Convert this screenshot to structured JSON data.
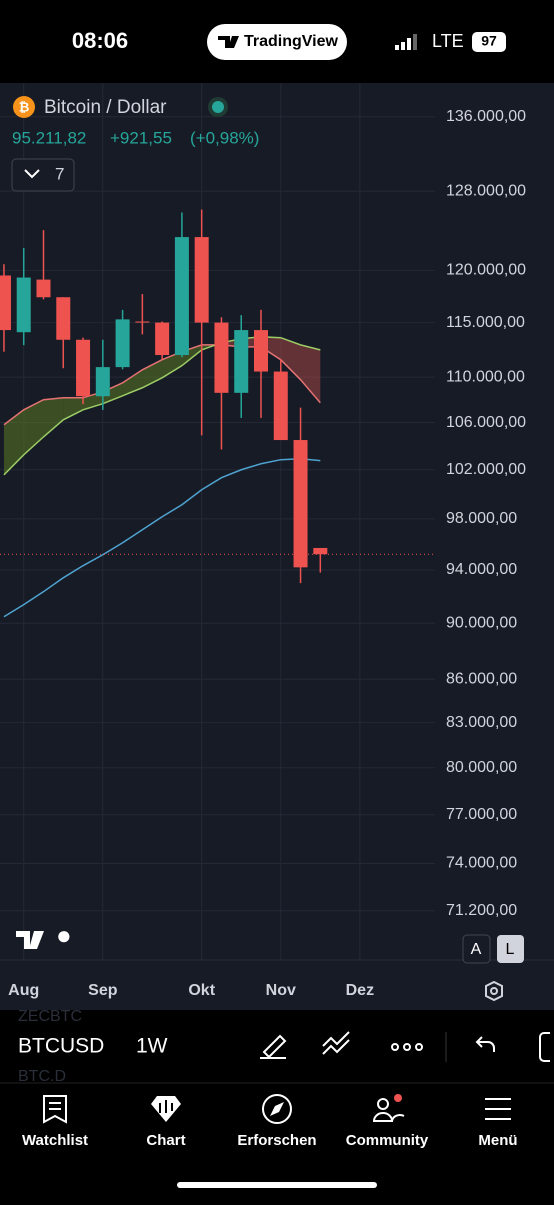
{
  "status_bar": {
    "time": "08:06",
    "brand": "TradingView",
    "network": "LTE",
    "battery": "97"
  },
  "header": {
    "symbol_name": "Bitcoin / Dollar",
    "price": "95.211,82",
    "change": "+921,55",
    "change_pct": "(+0,98%)",
    "indicators_count": "7"
  },
  "chart_data": {
    "type": "candlestick",
    "categories": [
      null,
      null,
      null,
      null,
      null,
      null,
      null,
      null,
      null,
      null,
      null,
      null,
      null,
      null,
      null,
      null,
      null
    ],
    "open": [
      119500,
      114100,
      119100,
      117400,
      113400,
      108300,
      110900,
      115100,
      115000,
      112000,
      123300,
      115000,
      108600,
      114300,
      110500,
      104500,
      95700
    ],
    "high": [
      120600,
      122200,
      124000,
      117400,
      113600,
      113400,
      116200,
      117700,
      115100,
      125800,
      126100,
      115500,
      115700,
      116200,
      111600,
      107300,
      95700
    ],
    "low": [
      112300,
      112900,
      117200,
      110800,
      107600,
      107100,
      110700,
      113900,
      111600,
      111800,
      104900,
      103700,
      106400,
      106400,
      104500,
      93000,
      93800
    ],
    "close": [
      114300,
      119300,
      117400,
      113400,
      108300,
      110900,
      115300,
      115000,
      112000,
      123300,
      115000,
      108600,
      114300,
      110500,
      104500,
      94200,
      95211.82
    ],
    "up_color": "#26a69a",
    "down_color": "#ef5350",
    "series": [
      {
        "color": "#e57373",
        "values": [
          105810,
          107110,
          107990,
          108160,
          108160,
          108690,
          109490,
          110660,
          111570,
          112300,
          112930,
          112930,
          112750,
          112750,
          111570,
          109770,
          107720
        ]
      },
      {
        "color": "#9ccc65",
        "values": [
          101580,
          103250,
          104770,
          106240,
          107110,
          107640,
          108340,
          109050,
          109940,
          111030,
          112470,
          113120,
          113490,
          113680,
          113590,
          112930,
          112470
        ]
      },
      {
        "color": "#4fa3d1",
        "values": [
          90480,
          91380,
          92350,
          93400,
          94330,
          95170,
          96110,
          97130,
          98170,
          99130,
          100350,
          101340,
          102000,
          102500,
          102840,
          102920,
          102760
        ]
      }
    ],
    "band_colors": {
      "up": "#6b8e23",
      "down": "#c0504d"
    },
    "log_scale": true,
    "ylim": [
      68400,
      139800
    ],
    "yticks": [
      {
        "value": 136000,
        "label": "136.000,00"
      },
      {
        "value": 128000,
        "label": "128.000,00"
      },
      {
        "value": 120000,
        "label": "120.000,00"
      },
      {
        "value": 115000,
        "label": "115.000,00"
      },
      {
        "value": 110000,
        "label": "110.000,00"
      },
      {
        "value": 106000,
        "label": "106.000,00"
      },
      {
        "value": 102000,
        "label": "102.000,00"
      },
      {
        "value": 98000,
        "label": "98.000,00"
      },
      {
        "value": 94000,
        "label": "94.000,00"
      },
      {
        "value": 90000,
        "label": "90.000,00"
      },
      {
        "value": 86000,
        "label": "86.000,00"
      },
      {
        "value": 83000,
        "label": "83.000,00"
      },
      {
        "value": 80000,
        "label": "80.000,00"
      },
      {
        "value": 77000,
        "label": "77.000,00"
      },
      {
        "value": 74000,
        "label": "74.000,00"
      },
      {
        "value": 71200,
        "label": "71.200,00"
      }
    ],
    "xlim": [
      -0.2,
      21.8
    ],
    "xticks": [
      {
        "value": 1,
        "label": "Aug"
      },
      {
        "value": 5,
        "label": "Sep"
      },
      {
        "value": 10,
        "label": "Okt"
      },
      {
        "value": 14,
        "label": "Nov"
      },
      {
        "value": 18,
        "label": "Dez"
      }
    ],
    "grid": true
  },
  "scale_buttons": [
    "A",
    "L"
  ],
  "toolbar": {
    "symbol": "BTCUSD",
    "interval": "1W",
    "prev_symbol": "ZECBTC",
    "next_symbol": "BTC.D"
  },
  "tabs": [
    "Watchlist",
    "Chart",
    "Erforschen",
    "Community",
    "Menü"
  ]
}
